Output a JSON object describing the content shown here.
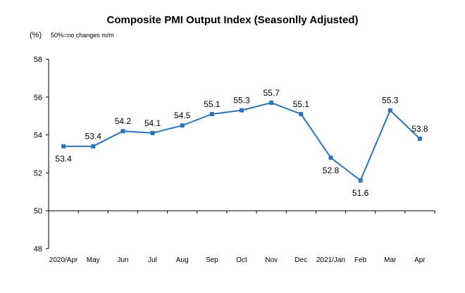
{
  "chart_data": {
    "type": "line",
    "title": "Composite PMI Output Index (Seasonlly Adjusted)",
    "ylabel": "(%)",
    "annotation": "50%=no changes  m/m",
    "categories": [
      "2020/Apr",
      "May",
      "Jun",
      "Jul",
      "Aug",
      "Sep",
      "Oct",
      "Nov",
      "Dec",
      "2021/Jan",
      "Feb",
      "Mar",
      "Apr"
    ],
    "values": [
      53.4,
      53.4,
      54.2,
      54.1,
      54.5,
      55.1,
      55.3,
      55.7,
      55.1,
      52.8,
      51.6,
      55.3,
      53.8
    ],
    "data_labels": [
      "53.4",
      "53.4",
      "54.2",
      "54.1",
      "54.5",
      "55.1",
      "55.3",
      "55.7",
      "55.1",
      "52.8",
      "51.6",
      "55.3",
      "53.8"
    ],
    "label_positions": [
      "below",
      "above",
      "above",
      "above",
      "above",
      "above",
      "above",
      "above",
      "above",
      "below",
      "below",
      "above",
      "above"
    ],
    "ylim": [
      48,
      58
    ],
    "yticks": [
      "48",
      "50",
      "52",
      "54",
      "56",
      "58"
    ],
    "grid": false,
    "colors": {
      "line": "#2e75b6"
    }
  }
}
